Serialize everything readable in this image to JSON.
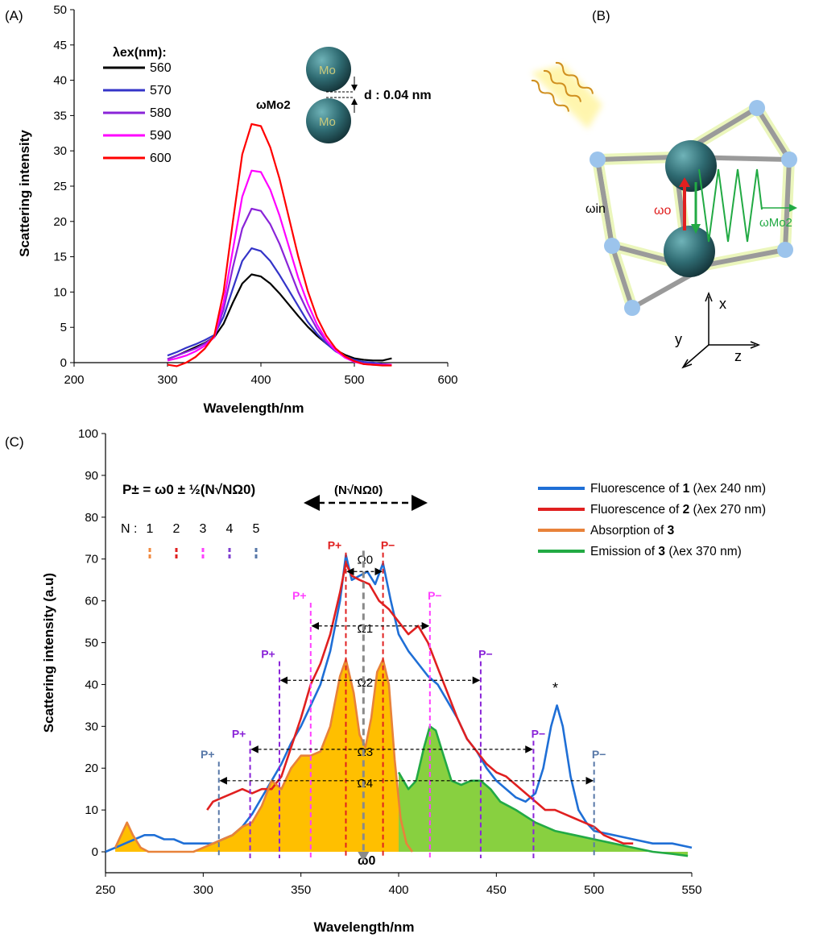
{
  "chart_data": [
    {
      "panel_label": "(A)",
      "type": "line",
      "xlabel": "Wavelength/nm",
      "ylabel": "Scattering intensity",
      "xlim": [
        200,
        600
      ],
      "ylim": [
        0,
        50
      ],
      "xticks": [
        200,
        300,
        400,
        500,
        600
      ],
      "yticks": [
        0,
        5,
        10,
        15,
        20,
        25,
        30,
        35,
        40,
        45,
        50
      ],
      "legend_title": "λex(nm):",
      "legend_position": "top-left",
      "peak_label": "ωMo2",
      "inset": {
        "atom_label": "Mo",
        "distance_label": "d : 0.04 nm"
      },
      "x": [
        300,
        310,
        320,
        330,
        340,
        350,
        360,
        370,
        380,
        390,
        400,
        410,
        420,
        430,
        440,
        450,
        460,
        470,
        480,
        490,
        500,
        510,
        520,
        530,
        540
      ],
      "series": [
        {
          "name": "560",
          "color": "#000000",
          "values": [
            0.5,
            1.0,
            1.6,
            2.2,
            2.8,
            3.6,
            5.5,
            8.5,
            11.2,
            12.5,
            12.2,
            11.2,
            9.8,
            8.2,
            6.6,
            5.1,
            3.8,
            2.7,
            1.8,
            1.1,
            0.6,
            0.4,
            0.3,
            0.3,
            0.6
          ]
        },
        {
          "name": "570",
          "color": "#3434c8",
          "values": [
            1.0,
            1.5,
            2.1,
            2.6,
            3.2,
            3.9,
            6.5,
            10.5,
            14.4,
            16.2,
            15.8,
            14.4,
            12.4,
            10.2,
            8.0,
            5.8,
            4.1,
            2.7,
            1.6,
            0.9,
            0.4,
            0.1,
            0.0,
            -0.2,
            -0.3
          ]
        },
        {
          "name": "580",
          "color": "#8a24d8",
          "values": [
            0.5,
            1.0,
            1.5,
            2.0,
            2.7,
            3.6,
            7.5,
            13.5,
            19.0,
            21.8,
            21.5,
            19.6,
            16.8,
            13.4,
            10.0,
            7.2,
            4.8,
            3.0,
            1.7,
            0.8,
            0.2,
            -0.1,
            -0.2,
            -0.3,
            -0.3
          ]
        },
        {
          "name": "590",
          "color": "#ff00ff",
          "values": [
            0.3,
            0.6,
            1.0,
            1.6,
            2.4,
            3.6,
            8.5,
            16.0,
            23.5,
            27.2,
            27.0,
            24.5,
            20.8,
            16.4,
            12.0,
            8.4,
            5.4,
            3.2,
            1.7,
            0.7,
            0.1,
            -0.2,
            -0.3,
            -0.3,
            -0.3
          ]
        },
        {
          "name": "600",
          "color": "#ff0000",
          "values": [
            -0.3,
            -0.5,
            0.0,
            0.8,
            2.0,
            3.8,
            10.0,
            20.0,
            29.5,
            33.8,
            33.5,
            30.5,
            26.0,
            20.5,
            15.0,
            10.2,
            6.4,
            3.8,
            2.0,
            0.9,
            0.2,
            -0.2,
            -0.3,
            -0.4,
            -0.4
          ]
        }
      ]
    },
    {
      "panel_label": "(B)",
      "type": "diagram",
      "labels": {
        "omega_in": "ωin",
        "omega_o": "ωo",
        "omega_mo2": "ωMo2",
        "axis_x": "x",
        "axis_y": "y",
        "axis_z": "z"
      }
    },
    {
      "panel_label": "(C)",
      "type": "line",
      "xlabel": "Wavelength/nm",
      "ylabel": "Scattering intensity (a.u)",
      "xlim": [
        250,
        550
      ],
      "ylim": [
        -5,
        100
      ],
      "xticks": [
        250,
        300,
        350,
        400,
        450,
        500,
        550
      ],
      "yticks": [
        0,
        10,
        20,
        30,
        40,
        50,
        60,
        70,
        80,
        90,
        100
      ],
      "legend_position": "top-right",
      "formula": "P± = ω0 ± ½(N√NΩ0)",
      "span_label": "(N√NΩ0)",
      "n_label": "N : 1  2  3  4  5",
      "n_values": [
        "1",
        "2",
        "3",
        "4",
        "5"
      ],
      "n_colors": [
        "#f08a40",
        "#e02020",
        "#ff40ff",
        "#8040d0",
        "#5878a8"
      ],
      "center_label": "ω0",
      "center_x": 382,
      "star_label": "*",
      "omega_labels": [
        "Ω0",
        "Ω1",
        "Ω2",
        "Ω3",
        "Ω4"
      ],
      "peak_markers": [
        {
          "label": "P+",
          "x": 373,
          "y": 70,
          "color": "#e02020"
        },
        {
          "label": "P−",
          "x": 392,
          "y": 70,
          "color": "#e02020"
        },
        {
          "label": "P+",
          "x": 355,
          "y": 58,
          "color": "#ff40ff"
        },
        {
          "label": "P−",
          "x": 416,
          "y": 58,
          "color": "#ff40ff"
        },
        {
          "label": "P+",
          "x": 339,
          "y": 44,
          "color": "#8a24d8"
        },
        {
          "label": "P−",
          "x": 442,
          "y": 44,
          "color": "#8a24d8"
        },
        {
          "label": "P+",
          "x": 324,
          "y": 25,
          "color": "#8a24d8"
        },
        {
          "label": "P−",
          "x": 469,
          "y": 25,
          "color": "#8a24d8"
        },
        {
          "label": "P+",
          "x": 308,
          "y": 20,
          "color": "#5878a8"
        },
        {
          "label": "P−",
          "x": 500,
          "y": 20,
          "color": "#5878a8"
        }
      ],
      "series": [
        {
          "name_prefix": "Fluorescence of ",
          "name_bold": "1",
          "name_suffix": " (λex 240 nm)",
          "color": "#1f6fd6",
          "x": [
            250,
            255,
            260,
            265,
            270,
            275,
            280,
            285,
            290,
            295,
            300,
            305,
            310,
            315,
            320,
            325,
            330,
            335,
            340,
            345,
            350,
            355,
            360,
            365,
            370,
            373,
            376,
            380,
            384,
            388,
            392,
            396,
            400,
            405,
            410,
            415,
            420,
            425,
            430,
            435,
            440,
            445,
            450,
            455,
            460,
            465,
            470,
            474,
            478,
            481,
            484,
            488,
            492,
            496,
            500,
            510,
            520,
            530,
            540,
            550
          ],
          "values": [
            0,
            1,
            2,
            3,
            4,
            4,
            3,
            3,
            2,
            2,
            2,
            2,
            3,
            4,
            6,
            9,
            13,
            17,
            21,
            26,
            30,
            35,
            40,
            48,
            60,
            71,
            65,
            66,
            67,
            64,
            69,
            60,
            52,
            48,
            45,
            42,
            40,
            36,
            32,
            27,
            24,
            20,
            17,
            15,
            13,
            12,
            14,
            20,
            30,
            35,
            30,
            18,
            10,
            7,
            5,
            4,
            3,
            2,
            2,
            1
          ]
        },
        {
          "name_prefix": "Fluorescence of ",
          "name_bold": "2",
          "name_suffix": " (λex 270 nm)",
          "color": "#e02020",
          "x": [
            302,
            305,
            310,
            315,
            320,
            325,
            330,
            335,
            340,
            345,
            350,
            355,
            360,
            365,
            370,
            373,
            376,
            380,
            385,
            390,
            395,
            400,
            405,
            410,
            415,
            420,
            425,
            430,
            435,
            440,
            445,
            450,
            455,
            460,
            465,
            470,
            475,
            480,
            485,
            490,
            495,
            500,
            505,
            510,
            515,
            520
          ],
          "values": [
            10,
            12,
            13,
            14,
            15,
            14,
            15,
            15,
            18,
            25,
            32,
            40,
            45,
            52,
            62,
            69,
            66,
            65,
            64,
            60,
            58,
            55,
            52,
            54,
            50,
            44,
            38,
            32,
            27,
            24,
            21,
            19,
            18,
            16,
            14,
            12,
            10,
            10,
            9,
            8,
            7,
            6,
            4,
            3,
            2,
            2
          ]
        },
        {
          "name_prefix": "Absorption of ",
          "name_bold": "3",
          "name_suffix": "",
          "color": "#e8823a",
          "fill": "#ffbf00",
          "x": [
            255,
            258,
            261,
            264,
            268,
            272,
            278,
            285,
            290,
            295,
            300,
            305,
            310,
            315,
            320,
            325,
            330,
            335,
            340,
            345,
            350,
            355,
            360,
            365,
            370,
            373,
            377,
            380,
            383,
            386,
            389,
            392,
            395,
            398,
            401,
            404,
            407
          ],
          "values": [
            1,
            4,
            7,
            4,
            1,
            0,
            0,
            0,
            0,
            0,
            1,
            2,
            3,
            4,
            6,
            7,
            11,
            17,
            15,
            20,
            23,
            23,
            24,
            30,
            42,
            46,
            38,
            28,
            25,
            32,
            43,
            46,
            40,
            22,
            8,
            2,
            0
          ]
        },
        {
          "name_prefix": "Emission of ",
          "name_bold": "3",
          "name_suffix": " (λex 370 nm)",
          "color": "#22aa44",
          "fill": "#88d040",
          "x": [
            400,
            405,
            409,
            413,
            416,
            419,
            423,
            427,
            432,
            437,
            442,
            447,
            452,
            460,
            470,
            480,
            490,
            500,
            510,
            520,
            530,
            540,
            548
          ],
          "values": [
            19,
            15,
            17,
            25,
            30,
            29,
            23,
            17,
            16,
            17,
            17,
            15,
            12,
            10,
            7,
            5,
            4,
            3,
            2,
            1,
            0,
            -0.5,
            -1
          ]
        }
      ]
    }
  ]
}
